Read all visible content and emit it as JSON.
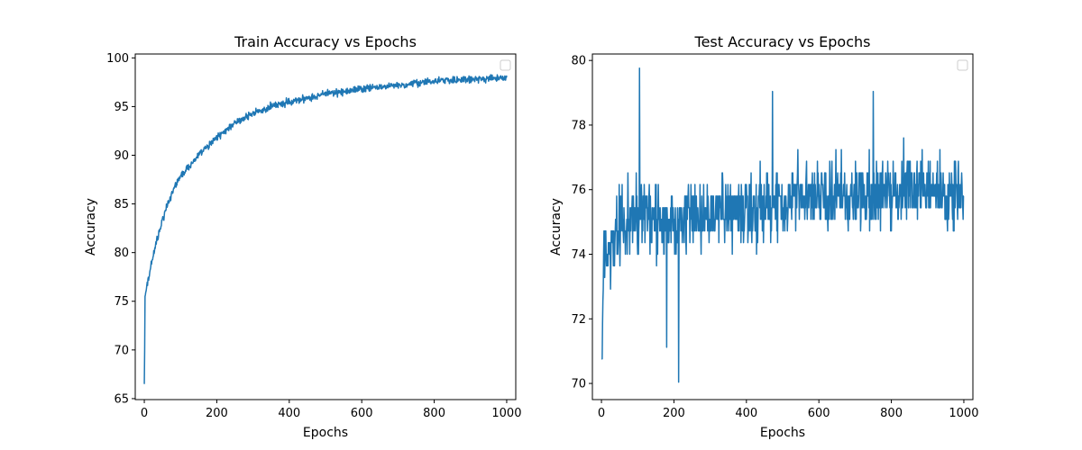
{
  "chart_data": [
    {
      "type": "line",
      "title": "Train Accuracy vs Epochs",
      "xlabel": "Epochs",
      "ylabel": "Accuracy",
      "xlim": [
        -25,
        1025
      ],
      "ylim": [
        64.9,
        100.4
      ],
      "xticks": [
        0,
        200,
        400,
        600,
        800,
        1000
      ],
      "xtick_labels": [
        "0",
        "200",
        "400",
        "600",
        "800",
        "1000"
      ],
      "yticks": [
        65,
        70,
        75,
        80,
        85,
        90,
        95,
        100
      ],
      "ytick_labels": [
        "65",
        "70",
        "75",
        "80",
        "85",
        "90",
        "95",
        "100"
      ],
      "grid": false,
      "legend": "top-right (empty)",
      "color": "#1f77b4",
      "trend_points": [
        [
          0,
          66.5
        ],
        [
          1,
          70.0
        ],
        [
          2,
          75.5
        ],
        [
          5,
          76.0
        ],
        [
          10,
          77.0
        ],
        [
          20,
          79.0
        ],
        [
          40,
          82.0
        ],
        [
          60,
          84.5
        ],
        [
          80,
          86.5
        ],
        [
          100,
          87.8
        ],
        [
          150,
          90.0
        ],
        [
          200,
          91.8
        ],
        [
          250,
          93.3
        ],
        [
          300,
          94.3
        ],
        [
          350,
          95.0
        ],
        [
          400,
          95.5
        ],
        [
          450,
          95.9
        ],
        [
          500,
          96.3
        ],
        [
          600,
          96.8
        ],
        [
          700,
          97.2
        ],
        [
          800,
          97.6
        ],
        [
          900,
          97.8
        ],
        [
          1000,
          97.9
        ]
      ],
      "noise": 0.55
    },
    {
      "type": "line",
      "title": "Test Accuracy vs Epochs",
      "xlabel": "Epochs",
      "ylabel": "Accuracy",
      "xlim": [
        -25,
        1025
      ],
      "ylim": [
        69.5,
        80.2
      ],
      "xticks": [
        0,
        200,
        400,
        600,
        800,
        1000
      ],
      "xtick_labels": [
        "0",
        "200",
        "400",
        "600",
        "800",
        "1000"
      ],
      "yticks": [
        70,
        72,
        74,
        76,
        78,
        80
      ],
      "ytick_labels": [
        "70",
        "72",
        "74",
        "76",
        "78",
        "80"
      ],
      "grid": false,
      "legend": "top-right (empty)",
      "color": "#1f77b4",
      "trend_points": [
        [
          0,
          70.6
        ],
        [
          2,
          70.6
        ],
        [
          4,
          72.5
        ],
        [
          6,
          73.8
        ],
        [
          20,
          74.0
        ],
        [
          60,
          74.8
        ],
        [
          100,
          75.0
        ],
        [
          200,
          74.8
        ],
        [
          300,
          75.1
        ],
        [
          400,
          75.2
        ],
        [
          500,
          75.4
        ],
        [
          600,
          75.6
        ],
        [
          700,
          75.7
        ],
        [
          800,
          75.8
        ],
        [
          900,
          75.8
        ],
        [
          1000,
          75.6
        ]
      ],
      "noise": 1.05,
      "extremes": [
        [
          105,
          79.7
        ],
        [
          213,
          70.0
        ],
        [
          472,
          78.8
        ],
        [
          750,
          78.8
        ],
        [
          180,
          70.8
        ]
      ]
    }
  ]
}
